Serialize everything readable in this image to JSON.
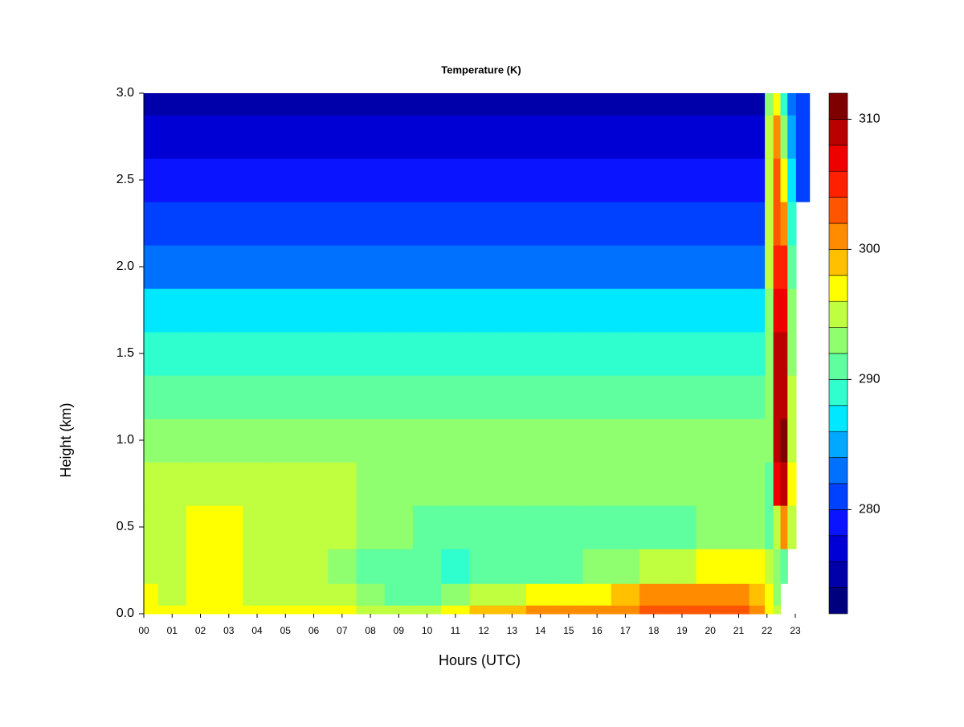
{
  "chart_data": {
    "type": "heatmap",
    "title": "Temperature (K)",
    "x_label": "Hours (UTC)",
    "y_label": "Height (km)",
    "x": [
      0,
      1,
      2,
      3,
      4,
      5,
      6,
      7,
      8,
      9,
      10,
      11,
      12,
      13,
      14,
      15,
      16,
      17,
      18,
      19,
      20,
      21,
      21.75,
      22.1,
      22.35,
      22.6,
      22.85,
      23.2,
      23.8
    ],
    "y": [
      0,
      0.1,
      0.25,
      0.5,
      0.75,
      1.0,
      1.25,
      1.5,
      1.75,
      2.0,
      2.25,
      2.5,
      2.75,
      3.0
    ],
    "z": [
      [
        297,
        297,
        297.5,
        297,
        297,
        297,
        296.5,
        296,
        295,
        294.5,
        295,
        297,
        298,
        299,
        300,
        300.5,
        300.5,
        301,
        302.5,
        303,
        303,
        302,
        300,
        297,
        294,
        null,
        null,
        null,
        null
      ],
      [
        296,
        295.5,
        296,
        296,
        295.5,
        295,
        294.5,
        294,
        292,
        291,
        291,
        292,
        294,
        295.5,
        296.5,
        297,
        297.5,
        298,
        300,
        301,
        301,
        300,
        299,
        296,
        293,
        null,
        null,
        null,
        null
      ],
      [
        295,
        295,
        296,
        296,
        295,
        294.5,
        294,
        293,
        291,
        290.5,
        290,
        289.5,
        290,
        290.5,
        291,
        291.5,
        292,
        293,
        294,
        295,
        296,
        296.5,
        296,
        294,
        292,
        291,
        null,
        null,
        null
      ],
      [
        295,
        295,
        296.5,
        296.5,
        295,
        295,
        295,
        294,
        292,
        292,
        291,
        290,
        290,
        290,
        290,
        290,
        290,
        290.5,
        291,
        291.5,
        292,
        292.5,
        293,
        291,
        295,
        300,
        294,
        null,
        null
      ],
      [
        295,
        295,
        295,
        295,
        295,
        295,
        295,
        295,
        292,
        292,
        292,
        292,
        292,
        292,
        292.5,
        292.5,
        292.5,
        292.5,
        292.5,
        292.5,
        292.5,
        292.5,
        293,
        291,
        307,
        309,
        296,
        null,
        null
      ],
      [
        293.5,
        293.5,
        293.5,
        293.5,
        293.5,
        293.5,
        293.5,
        293.5,
        292,
        292,
        292,
        292,
        292,
        292,
        292,
        292,
        292,
        292,
        292,
        292,
        292,
        292,
        292,
        292,
        309,
        310,
        295,
        null,
        null
      ],
      [
        291,
        291,
        291,
        291,
        291,
        291,
        290.5,
        290.5,
        290.5,
        290.5,
        290.5,
        290.5,
        290.5,
        290.5,
        290.5,
        290.5,
        290.5,
        290.5,
        290.5,
        290.5,
        290.5,
        290.5,
        291,
        292,
        309,
        309,
        294,
        null,
        null
      ],
      [
        288.5,
        288.5,
        288.5,
        288.5,
        288.5,
        288.5,
        288.5,
        288.5,
        288.5,
        288.5,
        288.5,
        288.5,
        288.5,
        288.5,
        288.5,
        288.5,
        288.5,
        288.5,
        288.5,
        288.5,
        288.5,
        288.5,
        289,
        292,
        308,
        308,
        293,
        null,
        null
      ],
      [
        286,
        286,
        286,
        286,
        286,
        286,
        286,
        286,
        286,
        286,
        286,
        286,
        286,
        286,
        286,
        286,
        286,
        286,
        286,
        286,
        286,
        286,
        286,
        293,
        307,
        306,
        292,
        null,
        null
      ],
      [
        282.5,
        282.5,
        282.5,
        282.5,
        282.5,
        282.5,
        282.5,
        282.5,
        282.5,
        282.5,
        282.5,
        282.5,
        282.5,
        282.5,
        282.5,
        282.5,
        282.5,
        282.5,
        282.5,
        282.5,
        282.5,
        282.5,
        283,
        294,
        305,
        304,
        290,
        null,
        null
      ],
      [
        280.5,
        280.5,
        280.5,
        280.5,
        280.5,
        280.5,
        280.5,
        280.5,
        280.5,
        280.5,
        280.5,
        280.5,
        280.5,
        280.5,
        280.5,
        280.5,
        280.5,
        280.5,
        280.5,
        280.5,
        280.5,
        280.5,
        281,
        295,
        303,
        300,
        288,
        null,
        null
      ],
      [
        279,
        279,
        279,
        279,
        279,
        279,
        279,
        279,
        279,
        279,
        279,
        279,
        279,
        279,
        279,
        279,
        279,
        279,
        279,
        279,
        279,
        279,
        279,
        295,
        302,
        297,
        286,
        281,
        null
      ],
      [
        277,
        277,
        277,
        277,
        277,
        277,
        277,
        277,
        277,
        277,
        277,
        277,
        277,
        277,
        277,
        277,
        277,
        277,
        277,
        277,
        277,
        277,
        277,
        294,
        300,
        292,
        284,
        280,
        null
      ],
      [
        275,
        275,
        275,
        275,
        275,
        275,
        275,
        275,
        275,
        275,
        275,
        274.5,
        274.5,
        274.5,
        274.5,
        274.5,
        274.5,
        274.5,
        275,
        275,
        275,
        275,
        275,
        292,
        296,
        288,
        282,
        280,
        null
      ]
    ],
    "xlim": [
      0,
      23.8
    ],
    "ylim": [
      0,
      3.0
    ],
    "xticks": [
      {
        "value": 0,
        "label": "00"
      },
      {
        "value": 1,
        "label": "01"
      },
      {
        "value": 2,
        "label": "02"
      },
      {
        "value": 3,
        "label": "03"
      },
      {
        "value": 4,
        "label": "04"
      },
      {
        "value": 5,
        "label": "05"
      },
      {
        "value": 6,
        "label": "06"
      },
      {
        "value": 7,
        "label": "07"
      },
      {
        "value": 8,
        "label": "08"
      },
      {
        "value": 9,
        "label": "09"
      },
      10,
      11,
      12,
      13,
      14,
      15,
      16,
      17,
      18,
      19,
      20,
      21,
      22,
      23
    ],
    "yticks": [
      {
        "value": 0,
        "label": "0.0"
      },
      0.5,
      {
        "value": 1,
        "label": "1.0"
      },
      1.5,
      {
        "value": 2,
        "label": "2.0"
      },
      2.5,
      {
        "value": 3,
        "label": "3.0"
      }
    ],
    "colorbar": {
      "levels": [
        272,
        274,
        276,
        278,
        280,
        282,
        284,
        286,
        288,
        290,
        292,
        294,
        296,
        298,
        300,
        302,
        304,
        306,
        308,
        310,
        312
      ],
      "colors": [
        "#00007f",
        "#0000aa",
        "#0000d5",
        "#0a14ff",
        "#0040ff",
        "#0070ff",
        "#00a8ff",
        "#00e8ff",
        "#2fffcf",
        "#5fff9f",
        "#8fff6f",
        "#bfff3f",
        "#ffff00",
        "#ffc000",
        "#ff8c00",
        "#ff5500",
        "#ff2000",
        "#ee0000",
        "#bb0000",
        "#7f0000"
      ],
      "ticks": [
        280,
        290,
        300,
        310
      ]
    }
  }
}
